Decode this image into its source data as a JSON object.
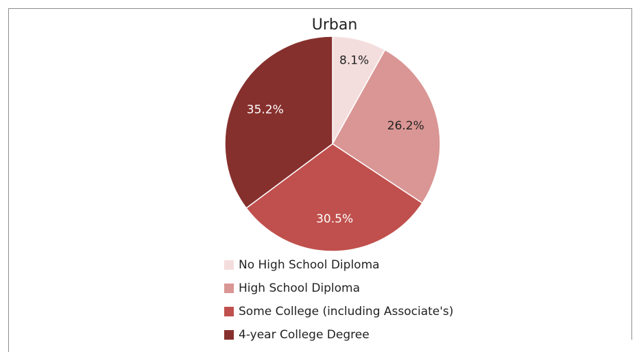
{
  "chart_data": {
    "type": "pie",
    "title": "Urban",
    "categories": [
      "No High School Diploma",
      "High School Diploma",
      "Some College (including Associate's)",
      "4-year College Degree"
    ],
    "values": [
      8.1,
      26.2,
      30.5,
      35.2
    ],
    "value_labels": [
      "8.1%",
      "26.2%",
      "30.5%",
      "35.2%"
    ],
    "colors": [
      "#f4dedd",
      "#d99694",
      "#c0504d",
      "#86302d"
    ],
    "label_colors": [
      "#222222",
      "#222222",
      "#ffffff",
      "#ffffff"
    ],
    "legend": "bottom"
  }
}
